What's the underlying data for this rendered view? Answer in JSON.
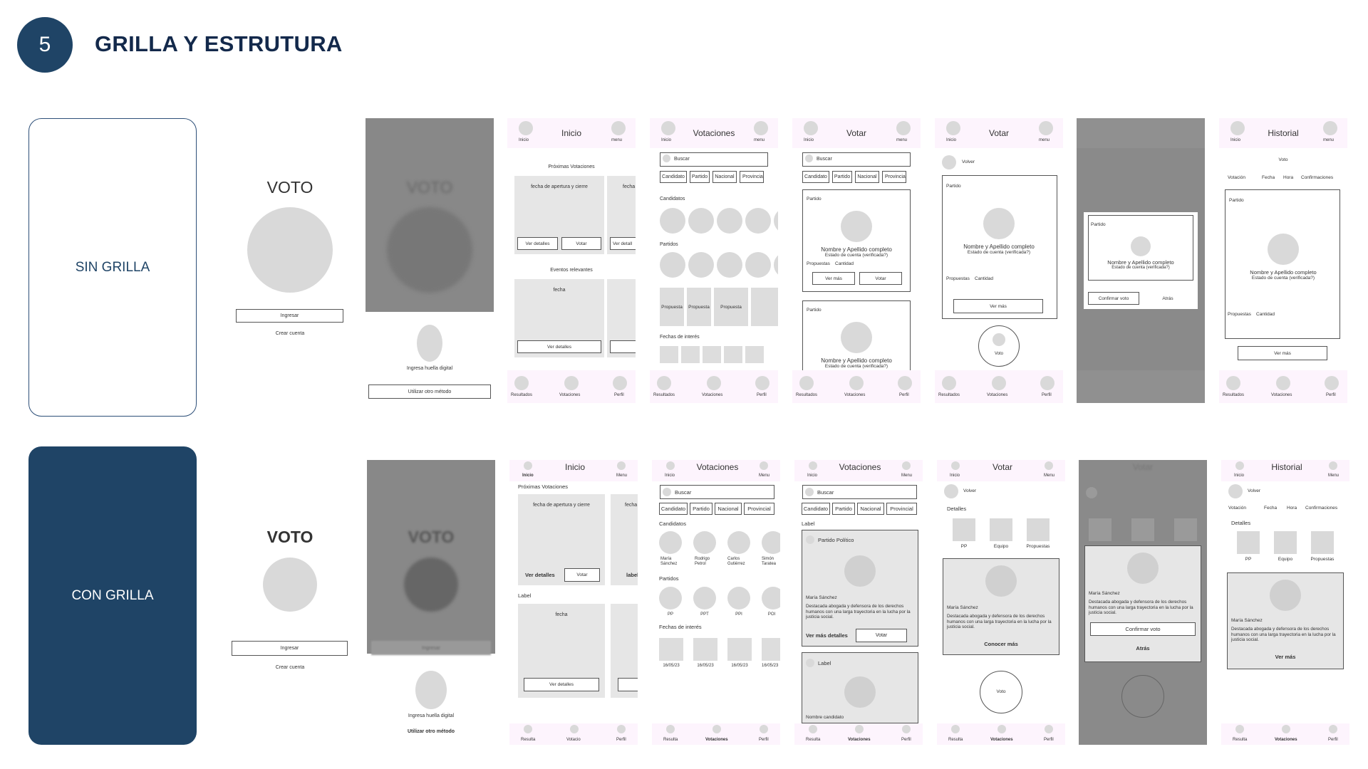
{
  "header": {
    "number": "5",
    "title": "GRILLA Y ESTRUTURA"
  },
  "rows": {
    "sin": "SIN GRILLA",
    "con": "CON GRILLA"
  },
  "login": {
    "brand": "VOTO",
    "ingresar": "Ingresar",
    "crear": "Crear cuenta"
  },
  "finger": {
    "brand": "VOTO",
    "huella": "Ingresa huella digital",
    "otro": "Utilizar otro método",
    "ingresar": "Ingresar"
  },
  "nav": {
    "inicio": "Inicio",
    "menu": "menu",
    "menu2": "Menu",
    "resultados": "Resultados",
    "resulta": "Resulta",
    "votaciones": "Votaciones",
    "votacio": "Votacio",
    "perfil": "Perfil"
  },
  "inicio": {
    "title": "Inicio",
    "proximas": "Próximas Votaciones",
    "fecha_ac": "fecha de apertura y cierre",
    "fecha_short": "fecha",
    "ver": "Ver detalles",
    "ver_short": "Ver detall",
    "votar": "Votar",
    "eventos": "Eventos relevantes",
    "fecha": "fecha",
    "label": "Label",
    "label_l": "label"
  },
  "votaciones": {
    "title": "Votaciones",
    "buscar": "Buscar",
    "tabs": [
      "Candidato",
      "Partido",
      "Nacional",
      "Provincial"
    ],
    "candidatos": "Candidatos",
    "partidos": "Partidos",
    "propuesta": "Propuesta",
    "fechas": "Fechas de interés",
    "cand_names": [
      "María Sánchez",
      "Rodrigo Petrol",
      "Carlos Gutiérrez",
      "Simón Taratea"
    ],
    "parties": [
      "PP",
      "PPT",
      "PPI",
      "POI"
    ],
    "dates": [
      "16/05/23",
      "16/05/23",
      "16/05/23",
      "16/05/23"
    ],
    "label": "Label",
    "partido_pol": "Partido Político",
    "maria": "María Sánchez",
    "bio": "Destacada abogada y defensora de los derechos humanos con una larga trayectoria en la lucha por la justicia social.",
    "ver_mas_det": "Ver más detalles",
    "nombre_cand": "Nombre candidato"
  },
  "votar": {
    "title": "Votar",
    "partido": "Partido",
    "nombre": "Nombre y Apellido completo",
    "estado": "Estado de cuenta (verificada?)",
    "propuestas": "Propuestas",
    "cantidad": "Cantidad",
    "ver_mas": "Ver más",
    "votar": "Votar",
    "volver": "Volver",
    "voto": "Voto",
    "detalles": "Detalles",
    "pp": "PP",
    "equipo": "Equipo",
    "props": "Propuestas",
    "conocer": "Conocer más"
  },
  "confirm": {
    "confirmar": "Confirmar voto",
    "atras": "Atrás",
    "title": "Votar"
  },
  "historial": {
    "title": "Historial",
    "voto": "Voto",
    "cols": [
      "Votación",
      "Fecha",
      "Hora",
      "Confirmaciones"
    ],
    "ver_mas": "Ver más"
  }
}
